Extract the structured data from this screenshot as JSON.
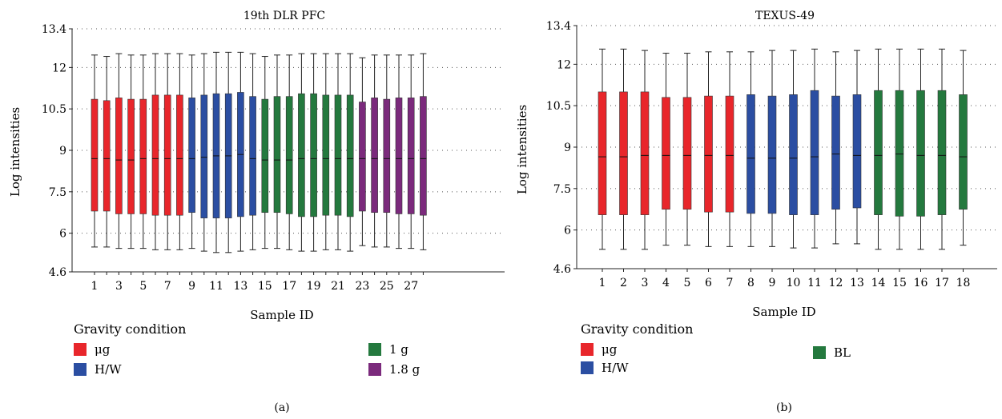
{
  "colors": {
    "ug": "#e8262b",
    "hw": "#2b4ea2",
    "one_g": "#24793e",
    "one_8g": "#7b2a7c"
  },
  "chart_data": [
    {
      "type": "box",
      "title": "19th DLR PFC",
      "xlabel": "Sample ID",
      "ylabel": "Log intensities",
      "ylim": [
        4.6,
        13.4
      ],
      "yticks": [
        "4.6",
        "6",
        "7.5",
        "9",
        "10.5",
        "12",
        "13.4"
      ],
      "grid": true,
      "categories": [
        "1",
        "2",
        "3",
        "4",
        "5",
        "6",
        "7",
        "8",
        "9",
        "10",
        "11",
        "12",
        "13",
        "14",
        "15",
        "16",
        "17",
        "18",
        "19",
        "20",
        "21",
        "22",
        "23",
        "24",
        "25",
        "26",
        "27",
        "28"
      ],
      "xtick_labels": [
        "1",
        "3",
        "5",
        "7",
        "9",
        "11",
        "13",
        "15",
        "17",
        "19",
        "21",
        "23",
        "25",
        "27"
      ],
      "legend_title": "Gravity condition",
      "legend": [
        {
          "label": "μg",
          "color_key": "ug"
        },
        {
          "label": "H/W",
          "color_key": "hw"
        },
        {
          "label": "1 g",
          "color_key": "one_g"
        },
        {
          "label": "1.8 g",
          "color_key": "one_8g"
        }
      ],
      "boxes": [
        {
          "group": "ug",
          "whisker_low": 5.5,
          "q1": 6.8,
          "median": 8.7,
          "q3": 10.85,
          "whisker_high": 12.45
        },
        {
          "group": "ug",
          "whisker_low": 5.5,
          "q1": 6.8,
          "median": 8.7,
          "q3": 10.8,
          "whisker_high": 12.4
        },
        {
          "group": "ug",
          "whisker_low": 5.45,
          "q1": 6.7,
          "median": 8.65,
          "q3": 10.9,
          "whisker_high": 12.5
        },
        {
          "group": "ug",
          "whisker_low": 5.45,
          "q1": 6.7,
          "median": 8.65,
          "q3": 10.85,
          "whisker_high": 12.45
        },
        {
          "group": "ug",
          "whisker_low": 5.45,
          "q1": 6.7,
          "median": 8.7,
          "q3": 10.85,
          "whisker_high": 12.45
        },
        {
          "group": "ug",
          "whisker_low": 5.4,
          "q1": 6.65,
          "median": 8.7,
          "q3": 11.0,
          "whisker_high": 12.5
        },
        {
          "group": "ug",
          "whisker_low": 5.4,
          "q1": 6.65,
          "median": 8.7,
          "q3": 11.0,
          "whisker_high": 12.5
        },
        {
          "group": "ug",
          "whisker_low": 5.4,
          "q1": 6.65,
          "median": 8.7,
          "q3": 11.0,
          "whisker_high": 12.5
        },
        {
          "group": "hw",
          "whisker_low": 5.45,
          "q1": 6.75,
          "median": 8.7,
          "q3": 10.9,
          "whisker_high": 12.45
        },
        {
          "group": "hw",
          "whisker_low": 5.35,
          "q1": 6.55,
          "median": 8.75,
          "q3": 11.0,
          "whisker_high": 12.5
        },
        {
          "group": "hw",
          "whisker_low": 5.3,
          "q1": 6.55,
          "median": 8.8,
          "q3": 11.05,
          "whisker_high": 12.55
        },
        {
          "group": "hw",
          "whisker_low": 5.3,
          "q1": 6.55,
          "median": 8.8,
          "q3": 11.05,
          "whisker_high": 12.55
        },
        {
          "group": "hw",
          "whisker_low": 5.35,
          "q1": 6.6,
          "median": 8.85,
          "q3": 11.1,
          "whisker_high": 12.55
        },
        {
          "group": "hw",
          "whisker_low": 5.4,
          "q1": 6.65,
          "median": 8.7,
          "q3": 10.95,
          "whisker_high": 12.5
        },
        {
          "group": "one_g",
          "whisker_low": 5.45,
          "q1": 6.75,
          "median": 8.65,
          "q3": 10.85,
          "whisker_high": 12.4
        },
        {
          "group": "one_g",
          "whisker_low": 5.45,
          "q1": 6.75,
          "median": 8.65,
          "q3": 10.95,
          "whisker_high": 12.45
        },
        {
          "group": "one_g",
          "whisker_low": 5.4,
          "q1": 6.7,
          "median": 8.65,
          "q3": 10.95,
          "whisker_high": 12.45
        },
        {
          "group": "one_g",
          "whisker_low": 5.35,
          "q1": 6.6,
          "median": 8.7,
          "q3": 11.05,
          "whisker_high": 12.5
        },
        {
          "group": "one_g",
          "whisker_low": 5.35,
          "q1": 6.6,
          "median": 8.7,
          "q3": 11.05,
          "whisker_high": 12.5
        },
        {
          "group": "one_g",
          "whisker_low": 5.4,
          "q1": 6.65,
          "median": 8.7,
          "q3": 11.0,
          "whisker_high": 12.5
        },
        {
          "group": "one_g",
          "whisker_low": 5.4,
          "q1": 6.65,
          "median": 8.7,
          "q3": 11.0,
          "whisker_high": 12.5
        },
        {
          "group": "one_g",
          "whisker_low": 5.35,
          "q1": 6.6,
          "median": 8.7,
          "q3": 11.0,
          "whisker_high": 12.5
        },
        {
          "group": "one_8g",
          "whisker_low": 5.55,
          "q1": 6.8,
          "median": 8.7,
          "q3": 10.75,
          "whisker_high": 12.35
        },
        {
          "group": "one_8g",
          "whisker_low": 5.5,
          "q1": 6.75,
          "median": 8.7,
          "q3": 10.9,
          "whisker_high": 12.45
        },
        {
          "group": "one_8g",
          "whisker_low": 5.5,
          "q1": 6.75,
          "median": 8.7,
          "q3": 10.85,
          "whisker_high": 12.45
        },
        {
          "group": "one_8g",
          "whisker_low": 5.45,
          "q1": 6.7,
          "median": 8.7,
          "q3": 10.9,
          "whisker_high": 12.45
        },
        {
          "group": "one_8g",
          "whisker_low": 5.45,
          "q1": 6.7,
          "median": 8.7,
          "q3": 10.9,
          "whisker_high": 12.45
        },
        {
          "group": "one_8g",
          "whisker_low": 5.4,
          "q1": 6.65,
          "median": 8.7,
          "q3": 10.95,
          "whisker_high": 12.5
        }
      ]
    },
    {
      "type": "box",
      "title": "TEXUS-49",
      "xlabel": "Sample ID",
      "ylabel": "Log intensities",
      "ylim": [
        4.6,
        13.4
      ],
      "yticks": [
        "4.6",
        "6",
        "7.5",
        "9",
        "10.5",
        "12",
        "13.4"
      ],
      "grid": true,
      "categories": [
        "1",
        "2",
        "3",
        "4",
        "5",
        "6",
        "7",
        "8",
        "9",
        "10",
        "11",
        "12",
        "13",
        "14",
        "15",
        "16",
        "17",
        "18"
      ],
      "xtick_labels": [
        "1",
        "2",
        "3",
        "4",
        "5",
        "6",
        "7",
        "8",
        "9",
        "10",
        "11",
        "12",
        "13",
        "14",
        "15",
        "16",
        "17",
        "18"
      ],
      "legend_title": "Gravity condition",
      "legend": [
        {
          "label": "μg",
          "color_key": "ug"
        },
        {
          "label": "H/W",
          "color_key": "hw"
        },
        {
          "label": "BL",
          "color_key": "one_g"
        }
      ],
      "boxes": [
        {
          "group": "ug",
          "whisker_low": 5.3,
          "q1": 6.55,
          "median": 8.65,
          "q3": 11.0,
          "whisker_high": 12.55
        },
        {
          "group": "ug",
          "whisker_low": 5.3,
          "q1": 6.55,
          "median": 8.65,
          "q3": 11.0,
          "whisker_high": 12.55
        },
        {
          "group": "ug",
          "whisker_low": 5.3,
          "q1": 6.55,
          "median": 8.7,
          "q3": 11.0,
          "whisker_high": 12.5
        },
        {
          "group": "ug",
          "whisker_low": 5.45,
          "q1": 6.75,
          "median": 8.7,
          "q3": 10.8,
          "whisker_high": 12.4
        },
        {
          "group": "ug",
          "whisker_low": 5.45,
          "q1": 6.75,
          "median": 8.7,
          "q3": 10.8,
          "whisker_high": 12.4
        },
        {
          "group": "ug",
          "whisker_low": 5.4,
          "q1": 6.65,
          "median": 8.7,
          "q3": 10.85,
          "whisker_high": 12.45
        },
        {
          "group": "ug",
          "whisker_low": 5.4,
          "q1": 6.65,
          "median": 8.7,
          "q3": 10.85,
          "whisker_high": 12.45
        },
        {
          "group": "hw",
          "whisker_low": 5.4,
          "q1": 6.6,
          "median": 8.6,
          "q3": 10.9,
          "whisker_high": 12.45
        },
        {
          "group": "hw",
          "whisker_low": 5.4,
          "q1": 6.6,
          "median": 8.6,
          "q3": 10.85,
          "whisker_high": 12.5
        },
        {
          "group": "hw",
          "whisker_low": 5.35,
          "q1": 6.55,
          "median": 8.6,
          "q3": 10.9,
          "whisker_high": 12.5
        },
        {
          "group": "hw",
          "whisker_low": 5.35,
          "q1": 6.55,
          "median": 8.65,
          "q3": 11.05,
          "whisker_high": 12.55
        },
        {
          "group": "hw",
          "whisker_low": 5.5,
          "q1": 6.75,
          "median": 8.75,
          "q3": 10.85,
          "whisker_high": 12.45
        },
        {
          "group": "hw",
          "whisker_low": 5.5,
          "q1": 6.8,
          "median": 8.7,
          "q3": 10.9,
          "whisker_high": 12.5
        },
        {
          "group": "one_g",
          "whisker_low": 5.3,
          "q1": 6.55,
          "median": 8.7,
          "q3": 11.05,
          "whisker_high": 12.55
        },
        {
          "group": "one_g",
          "whisker_low": 5.3,
          "q1": 6.5,
          "median": 8.75,
          "q3": 11.05,
          "whisker_high": 12.55
        },
        {
          "group": "one_g",
          "whisker_low": 5.3,
          "q1": 6.5,
          "median": 8.7,
          "q3": 11.05,
          "whisker_high": 12.55
        },
        {
          "group": "one_g",
          "whisker_low": 5.3,
          "q1": 6.55,
          "median": 8.7,
          "q3": 11.05,
          "whisker_high": 12.55
        },
        {
          "group": "one_g",
          "whisker_low": 5.45,
          "q1": 6.75,
          "median": 8.65,
          "q3": 10.9,
          "whisker_high": 12.5
        }
      ]
    }
  ],
  "captions": [
    "(a)",
    "(b)"
  ]
}
